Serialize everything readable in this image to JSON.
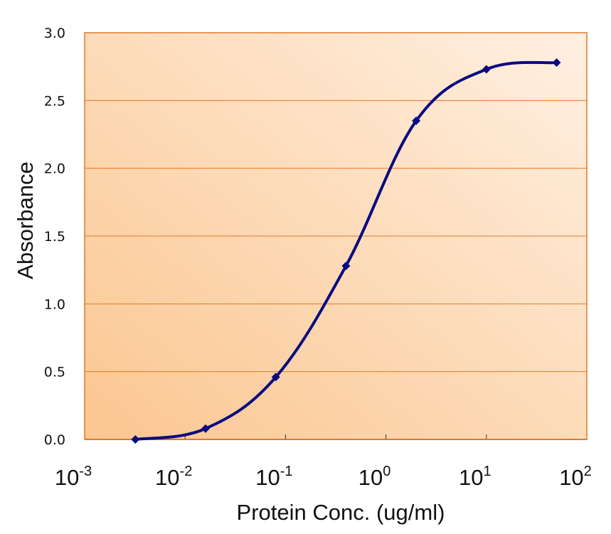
{
  "chart_data": {
    "type": "line",
    "title": "",
    "xlabel": "Protein Conc. (ug/ml)",
    "ylabel": "Absorbance",
    "xscale": "log",
    "xlim": [
      0.001,
      100
    ],
    "ylim": [
      0,
      3.0
    ],
    "grid": true,
    "legend": "none",
    "x_ticks": [
      {
        "base": "10",
        "exp": "-3",
        "value": 0.001
      },
      {
        "base": "10",
        "exp": "-2",
        "value": 0.01
      },
      {
        "base": "10",
        "exp": "-1",
        "value": 0.1
      },
      {
        "base": "10",
        "exp": "0",
        "value": 1
      },
      {
        "base": "10",
        "exp": "1",
        "value": 10
      },
      {
        "base": "10",
        "exp": "2",
        "value": 100
      }
    ],
    "y_ticks": [
      "0.0",
      "0.5",
      "1.0",
      "1.5",
      "2.0",
      "2.5",
      "3.0"
    ],
    "series": [
      {
        "name": "Absorbance",
        "marker": "diamond",
        "smooth": true,
        "x": [
          0.0032,
          0.016,
          0.08,
          0.4,
          2,
          10,
          50
        ],
        "y": [
          0.0,
          0.08,
          0.46,
          1.28,
          2.35,
          2.73,
          2.78
        ]
      }
    ],
    "colors": {
      "line": "#0a0a80",
      "gridline": "#e8781e",
      "border": "#e07a2a",
      "bg_light": "#fff0e2",
      "bg_dark": "#fbc690"
    }
  }
}
